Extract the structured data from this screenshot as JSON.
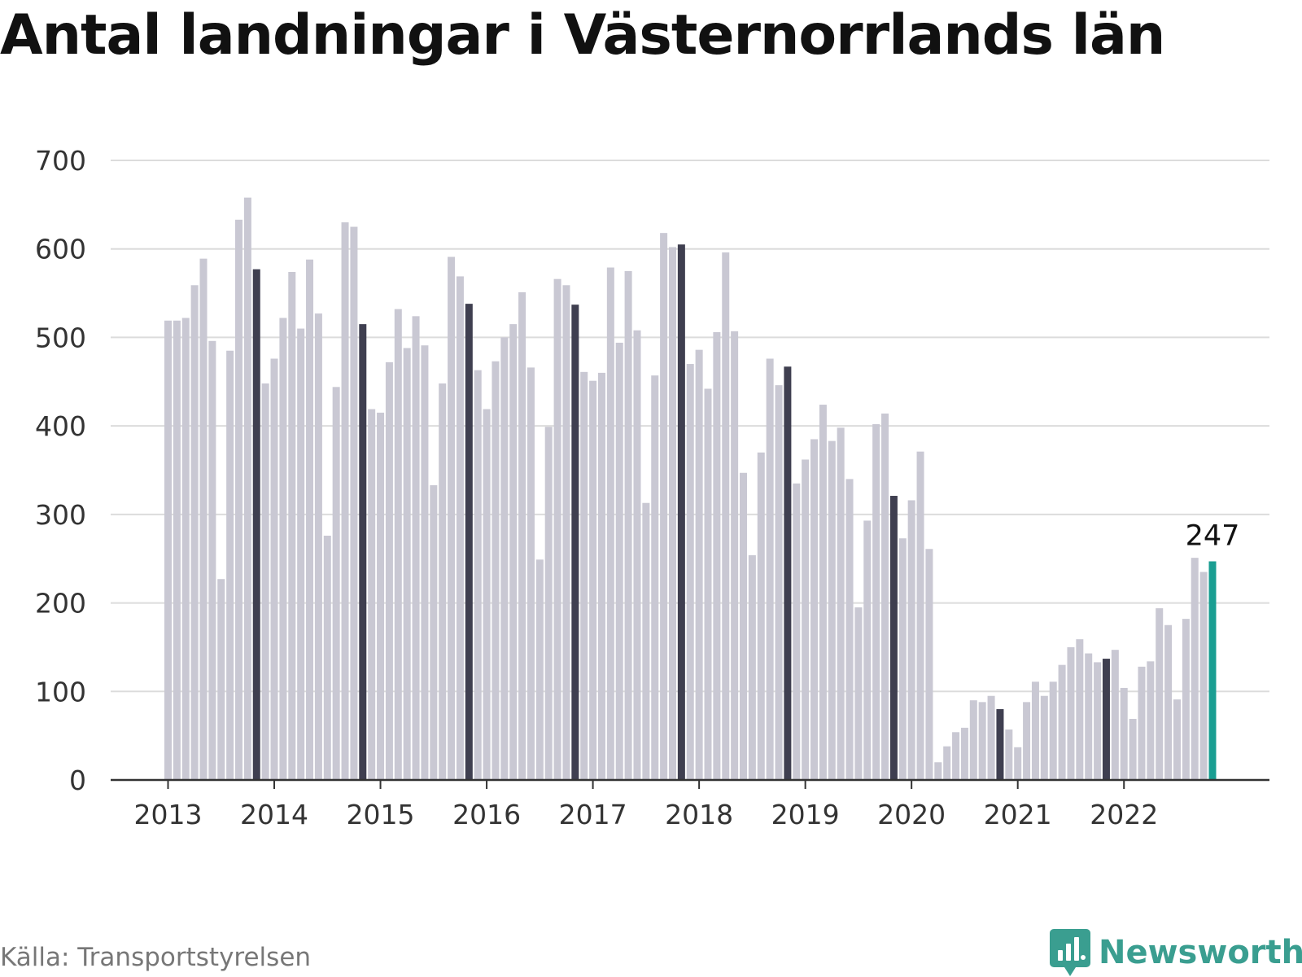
{
  "title": "Antal landningar i Västernorrlands län",
  "source": "Källa: Transportstyrelsen",
  "brand": {
    "name": "Newsworthy",
    "icon": "newsworthy-logo-icon"
  },
  "colors": {
    "bar": "#c9c8d3",
    "highlight": "#3f3f50",
    "latest": "#1a9e92",
    "grid": "#dcdcdc",
    "axis": "#333333",
    "text": "#333333"
  },
  "chart_data": {
    "type": "bar",
    "title": "Antal landningar i Västernorrlands län",
    "xlabel": "",
    "ylabel": "",
    "ylim": [
      0,
      700
    ],
    "yticks": [
      "0",
      "100",
      "200",
      "300",
      "400",
      "500",
      "600",
      "700"
    ],
    "xticks": [
      "2013",
      "2014",
      "2015",
      "2016",
      "2017",
      "2018",
      "2019",
      "2020",
      "2021",
      "2022"
    ],
    "grid": "horizontal",
    "start": "2013-01",
    "highlight_month": "November",
    "annotation": {
      "month": "2022-11",
      "label": "247"
    },
    "values": [
      519,
      519,
      522,
      559,
      589,
      496,
      227,
      485,
      633,
      658,
      577,
      448,
      476,
      522,
      574,
      510,
      588,
      527,
      276,
      444,
      630,
      625,
      515,
      419,
      415,
      472,
      532,
      488,
      524,
      491,
      333,
      448,
      591,
      569,
      538,
      463,
      419,
      473,
      500,
      515,
      551,
      466,
      249,
      399,
      566,
      559,
      537,
      461,
      451,
      460,
      579,
      494,
      575,
      508,
      313,
      457,
      618,
      602,
      605,
      470,
      486,
      442,
      506,
      596,
      507,
      347,
      254,
      370,
      476,
      446,
      467,
      335,
      362,
      385,
      424,
      383,
      398,
      340,
      195,
      293,
      402,
      414,
      321,
      273,
      316,
      371,
      261,
      20,
      38,
      54,
      59,
      90,
      88,
      95,
      80,
      57,
      37,
      88,
      111,
      95,
      111,
      130,
      150,
      159,
      143,
      133,
      137,
      147,
      104,
      69,
      128,
      134,
      194,
      175,
      91,
      182,
      251,
      235,
      247
    ]
  }
}
